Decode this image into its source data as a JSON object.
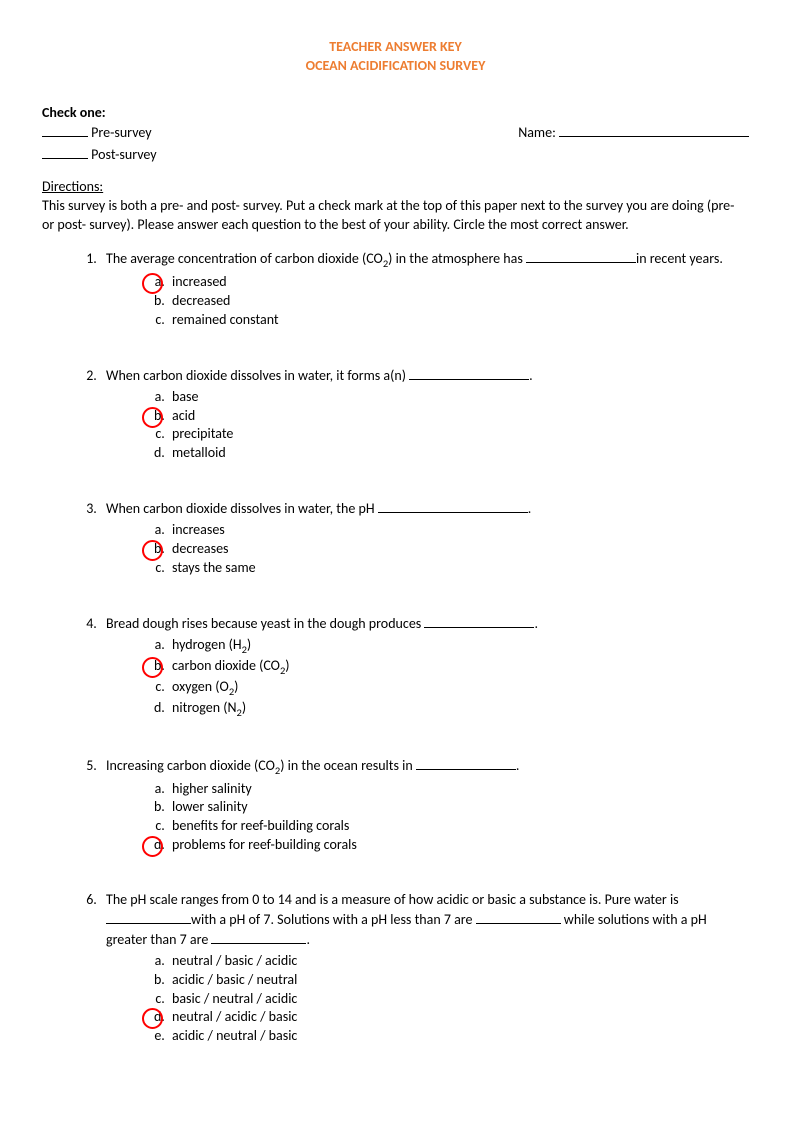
{
  "title": {
    "line1": "TEACHER ANSWER KEY",
    "line2": "OCEAN ACIDIFICATION SURVEY",
    "color": "#ed7d31"
  },
  "header": {
    "check_one": "Check one:",
    "pre": "Pre-survey",
    "post": "Post-survey",
    "name_label": "Name:"
  },
  "directions": {
    "head": "Directions:",
    "body": "This survey is both a pre- and post- survey.  Put a check mark at the top of this paper next to the survey you are doing (pre- or post- survey).  Please answer each question to the best of your ability.  Circle the most correct answer."
  },
  "questions": [
    {
      "text_parts": [
        "The average concentration of carbon dioxide (CO",
        "2",
        ") in the atmosphere has "
      ],
      "blank_width": 110,
      "text_after": "in recent years.",
      "answers": [
        {
          "text": "increased",
          "correct": true
        },
        {
          "text": "decreased",
          "correct": false
        },
        {
          "text": "remained constant",
          "correct": false
        }
      ]
    },
    {
      "text_parts": [
        "When carbon dioxide dissolves in water, it forms a(n) "
      ],
      "blank_width": 120,
      "text_after": ".",
      "answers": [
        {
          "text": "base",
          "correct": false
        },
        {
          "text": "acid",
          "correct": true
        },
        {
          "text": "precipitate",
          "correct": false
        },
        {
          "text": "metalloid",
          "correct": false
        }
      ]
    },
    {
      "text_parts": [
        "When carbon dioxide dissolves in water, the pH "
      ],
      "blank_width": 150,
      "text_after": ".",
      "answers": [
        {
          "text": "increases",
          "correct": false
        },
        {
          "text": "decreases",
          "correct": true
        },
        {
          "text": "stays the same",
          "correct": false
        }
      ]
    },
    {
      "text_parts": [
        "Bread dough rises because yeast in the dough produces "
      ],
      "blank_width": 110,
      "text_after": ".",
      "answers": [
        {
          "html": "hydrogen (H<sub>2</sub>)",
          "correct": false
        },
        {
          "html": "carbon dioxide (CO<sub>2</sub>)",
          "correct": true
        },
        {
          "html": "oxygen (O<sub>2</sub>)",
          "correct": false
        },
        {
          "html": "nitrogen (N<sub>2</sub>)",
          "correct": false
        }
      ]
    },
    {
      "text_parts": [
        "Increasing carbon dioxide (CO",
        "2",
        ") in the ocean results in "
      ],
      "blank_width": 100,
      "text_after": ".",
      "answers": [
        {
          "text": "higher salinity",
          "correct": false
        },
        {
          "text": "lower salinity",
          "correct": false
        },
        {
          "text": "benefits for reef-building corals",
          "correct": false
        },
        {
          "text": "problems for reef-building corals",
          "correct": true
        }
      ]
    },
    {
      "q6": {
        "line1_a": "The pH scale ranges from 0 to 14 and is a measure of how acidic or basic a substance is. Pure water is ",
        "blank1_w": 85,
        "line1_b": "with a pH of 7. Solutions with a pH less than 7 are ",
        "blank2_w": 85,
        "line1_c": " while solutions with a pH greater than 7 are ",
        "blank3_w": 95,
        "line1_d": "."
      },
      "answers": [
        {
          "text": "neutral / basic / acidic",
          "correct": false
        },
        {
          "text": "acidic / basic / neutral",
          "correct": false
        },
        {
          "text": "basic / neutral / acidic",
          "correct": false
        },
        {
          "text": "neutral / acidic / basic",
          "correct": true
        },
        {
          "text": "acidic / neutral / basic",
          "correct": false
        }
      ]
    }
  ],
  "circle_color": "#ff0000"
}
